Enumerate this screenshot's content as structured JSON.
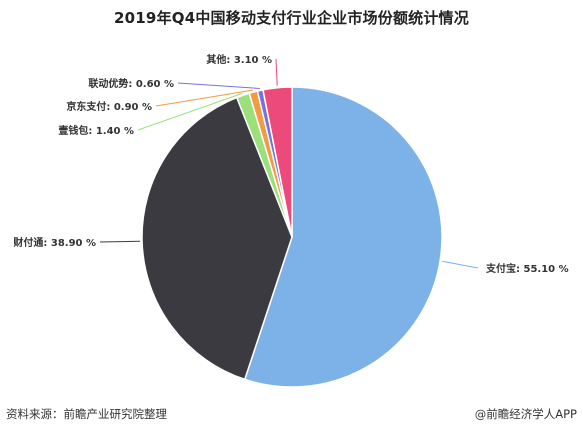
{
  "chart_data": {
    "type": "pie",
    "title": "2019年Q4中国移动支付行业企业市场份额统计情况",
    "unit": "%",
    "slices": [
      {
        "name": "支付宝",
        "value": 55.1,
        "label": "支付宝: 55.10 %",
        "color": "#7db2e8"
      },
      {
        "name": "财付通",
        "value": 38.9,
        "label": "财付通: 38.90 %",
        "color": "#3a3a40"
      },
      {
        "name": "壹钱包",
        "value": 1.4,
        "label": "壹钱包: 1.40 %",
        "color": "#9be07a"
      },
      {
        "name": "京东支付",
        "value": 0.9,
        "label": "京东支付: 0.90 %",
        "color": "#f29a44"
      },
      {
        "name": "联动优势",
        "value": 0.6,
        "label": "联动优势: 0.60 %",
        "color": "#7a6fe0"
      },
      {
        "name": "其他",
        "value": 3.1,
        "label": "其他: 3.10 %",
        "color": "#ec4a7a"
      }
    ]
  },
  "footer": {
    "source": "资料来源：前瞻产业研究院整理",
    "brand": "@前瞻经济学人APP"
  }
}
